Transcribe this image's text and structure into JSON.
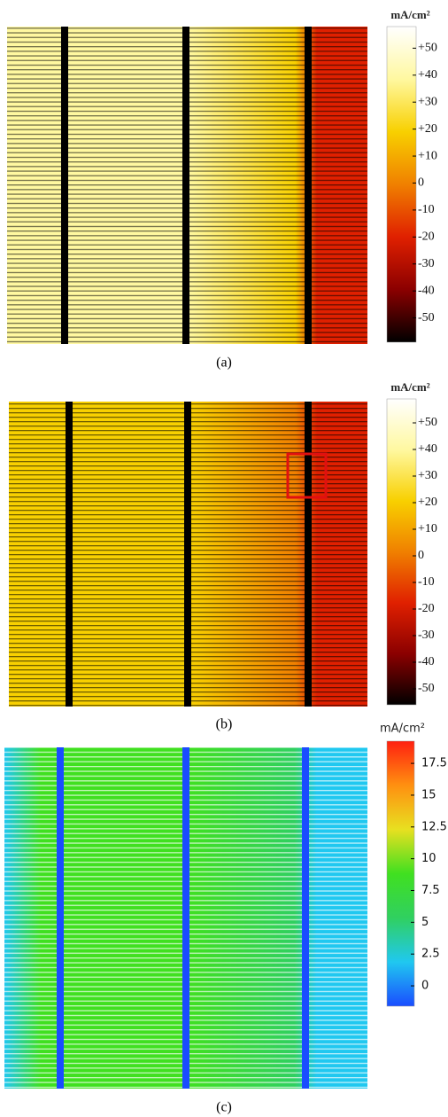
{
  "chart_data": [
    {
      "type": "heatmap",
      "caption": "(a)",
      "colorbar_label": "mA/cm²",
      "colormap": [
        "#000000",
        "#8b0000",
        "#e02000",
        "#f08000",
        "#f8d000",
        "#fff8a0",
        "#ffffff"
      ],
      "clim": [
        -59,
        58
      ],
      "cticks": [
        {
          "value": 50,
          "label": "+50"
        },
        {
          "value": 40,
          "label": "+40"
        },
        {
          "value": 30,
          "label": "+30"
        },
        {
          "value": 20,
          "label": "+20"
        },
        {
          "value": 10,
          "label": "+10"
        },
        0,
        -10,
        -20,
        -30,
        -40,
        -50
      ]
    },
    {
      "type": "heatmap",
      "caption": "(b)",
      "colorbar_label": "mA/cm²",
      "colormap": [
        "#000000",
        "#8b0000",
        "#e02000",
        "#f08000",
        "#f8d000",
        "#fff8a0",
        "#ffffff"
      ],
      "clim": [
        -56,
        59
      ],
      "cticks": [
        {
          "value": 50,
          "label": "+50"
        },
        {
          "value": 40,
          "label": "+40"
        },
        {
          "value": 30,
          "label": "+30"
        },
        {
          "value": 20,
          "label": "+20"
        },
        {
          "value": 10,
          "label": "+10"
        },
        0,
        -10,
        -20,
        -30,
        -40,
        -50
      ]
    },
    {
      "type": "heatmap",
      "caption": "(c)",
      "colorbar_label": "mA/cm²",
      "colormap": [
        "#1a4cff",
        "#20c8f0",
        "#30d060",
        "#40e020",
        "#e8e020",
        "#ff9010",
        "#ff2010"
      ],
      "clim": [
        -1.6,
        19.25
      ],
      "cticks": [
        17.5,
        15,
        12.5,
        10,
        7.5,
        5,
        2.5,
        0
      ]
    }
  ]
}
